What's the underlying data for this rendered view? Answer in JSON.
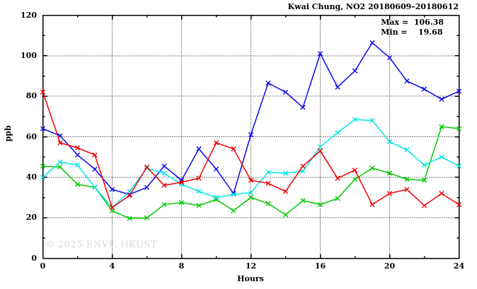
{
  "title": "Kwai Chung, NO2 20180609–20180612",
  "annotations": {
    "max_label": "Max = ",
    "max_value": "106.38",
    "min_label": "Min = ",
    "min_value": "19.68"
  },
  "watermark": "© 2025 ENVF, HKUST",
  "axes": {
    "x_label": "Hours",
    "y_label": "ppb"
  },
  "chart_data": {
    "type": "line",
    "title": "Kwai Chung, NO2 20180609–20180612",
    "xlabel": "Hours",
    "ylabel": "ppb",
    "xlim": [
      0,
      24
    ],
    "ylim": [
      0,
      120
    ],
    "xticks": [
      0,
      4,
      8,
      12,
      16,
      20,
      24
    ],
    "yticks": [
      0,
      20,
      40,
      60,
      80,
      100,
      120
    ],
    "x_minor_step": 2,
    "y_minor_step": 10,
    "grid": "dotted black gridlines at major ticks",
    "legend_position": "none",
    "marker": "x-cross",
    "annotation_max": 106.38,
    "annotation_min": 19.68,
    "x": [
      0,
      1,
      2,
      3,
      4,
      5,
      6,
      7,
      8,
      9,
      10,
      11,
      12,
      13,
      14,
      15,
      16,
      17,
      18,
      19,
      20,
      21,
      22,
      23,
      24
    ],
    "series": [
      {
        "name": "green",
        "color": "#00c800",
        "values": [
          45.5,
          45,
          36.5,
          35,
          23.5,
          19.7,
          19.9,
          26.5,
          27.5,
          26,
          29,
          23.5,
          30,
          27,
          21.5,
          28.5,
          26.5,
          29.5,
          39,
          44.5,
          42,
          39,
          38.5,
          65,
          64
        ]
      },
      {
        "name": "blue",
        "color": "#0808f0",
        "values": [
          64,
          60.5,
          51,
          44,
          34,
          31.5,
          35,
          45.5,
          38.5,
          54,
          44,
          32,
          61,
          86.5,
          82,
          74.5,
          101,
          84.5,
          92.5,
          106.4,
          99,
          87.5,
          83.5,
          78.5,
          82.5
        ]
      },
      {
        "name": "cyan",
        "color": "#00e6e6",
        "values": [
          40,
          47.5,
          46,
          35,
          25,
          33,
          44.5,
          42,
          36.5,
          33,
          30,
          31.5,
          32.5,
          42.5,
          42,
          43,
          55,
          62,
          68.5,
          68,
          57.5,
          53.5,
          46,
          50,
          45.5
        ]
      },
      {
        "name": "red",
        "color": "#f00000",
        "values": [
          82,
          57,
          54.5,
          51,
          25,
          31,
          45,
          36,
          37.5,
          39.5,
          57,
          54,
          38.5,
          37,
          33,
          45.5,
          53,
          39.5,
          43.5,
          26.5,
          32,
          34,
          26,
          32,
          26.5
        ]
      }
    ]
  },
  "colors": {
    "background": "#ffffff",
    "border": "#000000",
    "grid": "#000000",
    "text": "#000000",
    "watermark": "#d9d9d9"
  }
}
